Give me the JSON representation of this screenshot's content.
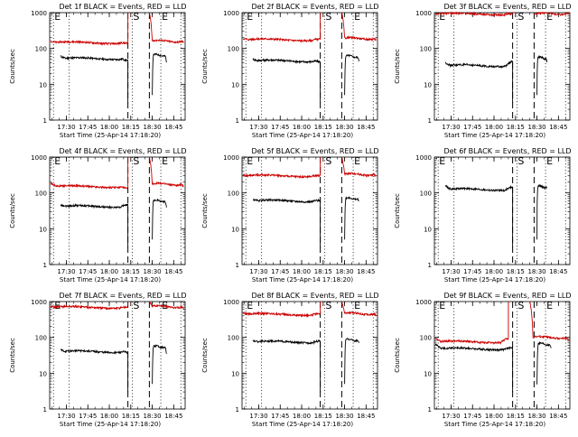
{
  "figure": {
    "ylabel": "Counts/sec",
    "xlabel": "Start Time (25-Apr-14 17:18:20)",
    "x_ticks": [
      "17:30",
      "17:45",
      "18:00",
      "18:15",
      "18:30",
      "18:45"
    ],
    "y_ticks": [
      "1",
      "10",
      "100",
      "1000"
    ],
    "marker_labels": {
      "E": "E",
      "S": "S"
    },
    "colors": {
      "events": "#000000",
      "lld": "#cc0000"
    }
  },
  "chart_data": [
    {
      "title": "Det 1f BLACK = Events, RED = LLD",
      "type": "line",
      "xlabel": "Start Time (25-Apr-14 17:18:20)",
      "ylabel": "Counts/sec",
      "y_scale": "log",
      "ylim": [
        1,
        1000
      ],
      "xlim": [
        "17:18:20",
        "18:53"
      ],
      "vertical_lines": [
        {
          "time": "17:21",
          "style": "dotted",
          "label": "E"
        },
        {
          "time": "17:32",
          "style": "dotted"
        },
        {
          "time": "18:13",
          "style": "dashed"
        },
        {
          "time": "18:16",
          "style": "dotted",
          "label": "S"
        },
        {
          "time": "18:28",
          "style": "dashed"
        },
        {
          "time": "18:36",
          "style": "dotted",
          "label": "E"
        },
        {
          "time": "18:50",
          "style": "dotted"
        }
      ],
      "series": [
        {
          "name": "Events",
          "color": "#000000",
          "segments": [
            {
              "start": "17:26",
              "end": "18:13",
              "start_value": 60,
              "level": 52,
              "end_value": 45,
              "drop_end": 3
            },
            {
              "start": "18:30",
              "end": "18:40",
              "start_value": 5,
              "level": 65,
              "end_value": 42,
              "drop_start": 5
            }
          ]
        },
        {
          "name": "LLD",
          "color": "#cc0000",
          "segments": [
            {
              "start": "17:19",
              "end": "18:13",
              "start_value": 160,
              "level": 145,
              "end_value": 140,
              "end_rise": 1000
            },
            {
              "start": "18:28",
              "end": "18:52",
              "start_value": 1000,
              "level": 160,
              "end_value": 150
            }
          ]
        }
      ]
    },
    {
      "title": "Det 2f BLACK = Events, RED = LLD",
      "type": "line",
      "xlabel": "Start Time (25-Apr-14 17:18:20)",
      "ylabel": "Counts/sec",
      "y_scale": "log",
      "ylim": [
        1,
        1000
      ],
      "xlim": [
        "17:18:20",
        "18:53"
      ],
      "vertical_lines": [
        {
          "time": "17:21",
          "style": "dotted",
          "label": "E"
        },
        {
          "time": "17:32",
          "style": "dotted"
        },
        {
          "time": "18:13",
          "style": "dashed"
        },
        {
          "time": "18:16",
          "style": "dotted",
          "label": "S"
        },
        {
          "time": "18:28",
          "style": "dashed"
        },
        {
          "time": "18:36",
          "style": "dotted",
          "label": "E"
        },
        {
          "time": "18:50",
          "style": "dotted"
        }
      ],
      "series": [
        {
          "name": "Events",
          "color": "#000000",
          "segments": [
            {
              "start": "17:26",
              "end": "18:13",
              "start_value": 50,
              "level": 45,
              "end_value": 42,
              "drop_end": 3
            },
            {
              "start": "18:30",
              "end": "18:40",
              "start_value": 5,
              "level": 60,
              "end_value": 45,
              "drop_start": 5
            }
          ]
        },
        {
          "name": "LLD",
          "color": "#cc0000",
          "segments": [
            {
              "start": "17:19",
              "end": "18:13",
              "start_value": 190,
              "level": 175,
              "end_value": 185,
              "end_rise": 1000
            },
            {
              "start": "18:28",
              "end": "18:52",
              "start_value": 1000,
              "level": 190,
              "end_value": 175
            }
          ]
        }
      ]
    },
    {
      "title": "Det 3f BLACK = Events, RED = LLD",
      "type": "line",
      "xlabel": "Start Time (25-Apr-14 17:18:20)",
      "ylabel": "Counts/sec",
      "y_scale": "log",
      "ylim": [
        1,
        1000
      ],
      "xlim": [
        "17:18:20",
        "18:53"
      ],
      "vertical_lines": [
        {
          "time": "17:21",
          "style": "dotted",
          "label": "E"
        },
        {
          "time": "17:32",
          "style": "dotted"
        },
        {
          "time": "18:13",
          "style": "dashed"
        },
        {
          "time": "18:16",
          "style": "dotted",
          "label": "S"
        },
        {
          "time": "18:28",
          "style": "dashed"
        },
        {
          "time": "18:36",
          "style": "dotted",
          "label": "E"
        },
        {
          "time": "18:50",
          "style": "dotted"
        }
      ],
      "series": [
        {
          "name": "Events",
          "color": "#000000",
          "segments": [
            {
              "start": "17:26",
              "end": "18:13",
              "start_value": 40,
              "level": 33,
              "end_value": 45,
              "drop_end": 3
            },
            {
              "start": "18:30",
              "end": "18:37",
              "start_value": 5,
              "level": 55,
              "end_value": 42,
              "drop_start": 5
            }
          ]
        },
        {
          "name": "LLD",
          "color": "#cc0000",
          "segments": [
            {
              "start": "17:19",
              "end": "18:13",
              "start_value": 950,
              "level": 920,
              "end_value": 940
            },
            {
              "start": "18:28",
              "end": "18:52",
              "start_value": 950,
              "level": 930,
              "end_value": 940
            }
          ]
        }
      ]
    },
    {
      "title": "Det 4f BLACK = Events, RED = LLD",
      "type": "line",
      "xlabel": "Start Time (25-Apr-14 17:18:20)",
      "ylabel": "Counts/sec",
      "y_scale": "log",
      "ylim": [
        1,
        1000
      ],
      "xlim": [
        "17:18:20",
        "18:53"
      ],
      "vertical_lines": [
        {
          "time": "17:21",
          "style": "dotted",
          "label": "E"
        },
        {
          "time": "17:32",
          "style": "dotted"
        },
        {
          "time": "18:13",
          "style": "dashed"
        },
        {
          "time": "18:16",
          "style": "dotted",
          "label": "S"
        },
        {
          "time": "18:28",
          "style": "dashed"
        },
        {
          "time": "18:36",
          "style": "dotted",
          "label": "E"
        },
        {
          "time": "18:50",
          "style": "dotted"
        }
      ],
      "series": [
        {
          "name": "Events",
          "color": "#000000",
          "segments": [
            {
              "start": "17:26",
              "end": "18:13",
              "start_value": 45,
              "level": 42,
              "end_value": 47,
              "drop_end": 3
            },
            {
              "start": "18:30",
              "end": "18:40",
              "start_value": 5,
              "level": 60,
              "end_value": 40,
              "drop_start": 5
            }
          ]
        },
        {
          "name": "LLD",
          "color": "#cc0000",
          "segments": [
            {
              "start": "17:19",
              "end": "18:13",
              "start_value": 190,
              "level": 150,
              "end_value": 130,
              "end_rise": 1000
            },
            {
              "start": "18:28",
              "end": "18:52",
              "start_value": 1000,
              "level": 175,
              "end_value": 155
            }
          ]
        }
      ]
    },
    {
      "title": "Det 5f BLACK = Events, RED = LLD",
      "type": "line",
      "xlabel": "Start Time (25-Apr-14 17:18:20)",
      "ylabel": "Counts/sec",
      "y_scale": "log",
      "ylim": [
        1,
        1000
      ],
      "xlim": [
        "17:18:20",
        "18:53"
      ],
      "vertical_lines": [
        {
          "time": "17:21",
          "style": "dotted",
          "label": "E"
        },
        {
          "time": "17:32",
          "style": "dotted"
        },
        {
          "time": "18:13",
          "style": "dashed"
        },
        {
          "time": "18:16",
          "style": "dotted",
          "label": "S"
        },
        {
          "time": "18:28",
          "style": "dashed"
        },
        {
          "time": "18:36",
          "style": "dotted",
          "label": "E"
        },
        {
          "time": "18:50",
          "style": "dotted"
        }
      ],
      "series": [
        {
          "name": "Events",
          "color": "#000000",
          "segments": [
            {
              "start": "17:26",
              "end": "18:13",
              "start_value": 65,
              "level": 60,
              "end_value": 62,
              "drop_end": 3
            },
            {
              "start": "18:30",
              "end": "18:40",
              "start_value": 5,
              "level": 70,
              "end_value": 60,
              "drop_start": 5
            }
          ]
        },
        {
          "name": "LLD",
          "color": "#cc0000",
          "segments": [
            {
              "start": "17:19",
              "end": "18:13",
              "start_value": 310,
              "level": 300,
              "end_value": 310,
              "end_rise": 1000
            },
            {
              "start": "18:28",
              "end": "18:52",
              "start_value": 1000,
              "level": 330,
              "end_value": 310
            }
          ]
        }
      ]
    },
    {
      "title": "Det 6f BLACK = Events, RED = LLD",
      "type": "line",
      "xlabel": "Start Time (25-Apr-14 17:18:20)",
      "ylabel": "Counts/sec",
      "y_scale": "log",
      "ylim": [
        1,
        1000
      ],
      "xlim": [
        "17:18:20",
        "18:53"
      ],
      "vertical_lines": [
        {
          "time": "17:21",
          "style": "dotted",
          "label": "E"
        },
        {
          "time": "17:32",
          "style": "dotted"
        },
        {
          "time": "18:13",
          "style": "dashed"
        },
        {
          "time": "18:16",
          "style": "dotted",
          "label": "S"
        },
        {
          "time": "18:28",
          "style": "dashed"
        },
        {
          "time": "18:36",
          "style": "dotted",
          "label": "E"
        },
        {
          "time": "18:50",
          "style": "dotted"
        }
      ],
      "series": [
        {
          "name": "Events",
          "color": "#000000",
          "segments": [
            {
              "start": "17:26",
              "end": "18:13",
              "start_value": 160,
              "level": 125,
              "end_value": 150,
              "drop_end": 3
            },
            {
              "start": "18:30",
              "end": "18:37",
              "start_value": 5,
              "level": 150,
              "end_value": 135,
              "drop_start": 5
            }
          ]
        }
      ]
    },
    {
      "title": "Det 7f BLACK = Events, RED = LLD",
      "type": "line",
      "xlabel": "Start Time (25-Apr-14 17:18:20)",
      "ylabel": "Counts/sec",
      "y_scale": "log",
      "ylim": [
        1,
        1000
      ],
      "xlim": [
        "17:18:20",
        "18:53"
      ],
      "vertical_lines": [
        {
          "time": "17:21",
          "style": "dotted",
          "label": "E"
        },
        {
          "time": "17:32",
          "style": "dotted"
        },
        {
          "time": "18:13",
          "style": "dashed"
        },
        {
          "time": "18:16",
          "style": "dotted",
          "label": "S"
        },
        {
          "time": "18:28",
          "style": "dashed"
        },
        {
          "time": "18:36",
          "style": "dotted",
          "label": "E"
        },
        {
          "time": "18:50",
          "style": "dotted"
        }
      ],
      "series": [
        {
          "name": "Events",
          "color": "#000000",
          "segments": [
            {
              "start": "17:26",
              "end": "18:13",
              "start_value": 45,
              "level": 40,
              "end_value": 38,
              "drop_end": 3
            },
            {
              "start": "18:30",
              "end": "18:40",
              "start_value": 5,
              "level": 55,
              "end_value": 35,
              "drop_start": 5
            }
          ]
        },
        {
          "name": "LLD",
          "color": "#cc0000",
          "segments": [
            {
              "start": "17:19",
              "end": "18:13",
              "start_value": 720,
              "level": 690,
              "end_value": 700,
              "end_rise": 1000
            },
            {
              "start": "18:28",
              "end": "18:52",
              "start_value": 1000,
              "level": 720,
              "end_value": 650
            }
          ]
        }
      ]
    },
    {
      "title": "Det 8f BLACK = Events, RED = LLD",
      "type": "line",
      "xlabel": "Start Time (25-Apr-14 17:18:20)",
      "ylabel": "Counts/sec",
      "y_scale": "log",
      "ylim": [
        1,
        1000
      ],
      "xlim": [
        "17:18:20",
        "18:53"
      ],
      "vertical_lines": [
        {
          "time": "17:21",
          "style": "dotted",
          "label": "E"
        },
        {
          "time": "17:32",
          "style": "dotted"
        },
        {
          "time": "18:13",
          "style": "dashed"
        },
        {
          "time": "18:16",
          "style": "dotted",
          "label": "S"
        },
        {
          "time": "18:28",
          "style": "dashed"
        },
        {
          "time": "18:36",
          "style": "dotted",
          "label": "E"
        },
        {
          "time": "18:50",
          "style": "dotted"
        }
      ],
      "series": [
        {
          "name": "Events",
          "color": "#000000",
          "segments": [
            {
              "start": "17:26",
              "end": "18:13",
              "start_value": 80,
              "level": 75,
              "end_value": 80,
              "drop_end": 3
            },
            {
              "start": "18:30",
              "end": "18:40",
              "start_value": 5,
              "level": 85,
              "end_value": 70,
              "drop_start": 5
            }
          ]
        },
        {
          "name": "LLD",
          "color": "#cc0000",
          "segments": [
            {
              "start": "17:19",
              "end": "18:13",
              "start_value": 480,
              "level": 440,
              "end_value": 450,
              "end_rise": 1000
            },
            {
              "start": "18:28",
              "end": "18:52",
              "start_value": 1000,
              "level": 460,
              "end_value": 420
            }
          ]
        }
      ]
    },
    {
      "title": "Det 9f BLACK = Events, RED = LLD",
      "type": "line",
      "xlabel": "Start Time (25-Apr-14 17:18:20)",
      "ylabel": "Counts/sec",
      "y_scale": "log",
      "ylim": [
        1,
        1000
      ],
      "xlim": [
        "17:18:20",
        "18:53"
      ],
      "vertical_lines": [
        {
          "time": "17:21",
          "style": "dotted",
          "label": "E"
        },
        {
          "time": "17:32",
          "style": "dotted"
        },
        {
          "time": "18:13",
          "style": "dashed"
        },
        {
          "time": "18:16",
          "style": "dotted",
          "label": "S"
        },
        {
          "time": "18:28",
          "style": "dashed"
        },
        {
          "time": "18:36",
          "style": "dotted",
          "label": "E"
        },
        {
          "time": "18:50",
          "style": "dotted"
        }
      ],
      "series": [
        {
          "name": "Events",
          "color": "#000000",
          "segments": [
            {
              "start": "17:19",
              "end": "18:13",
              "start_value": 65,
              "level": 48,
              "end_value": 52,
              "drop_end": 3
            },
            {
              "start": "18:30",
              "end": "18:40",
              "start_value": 5,
              "level": 65,
              "end_value": 50,
              "drop_start": 5
            }
          ]
        },
        {
          "name": "LLD",
          "color": "#cc0000",
          "segments": [
            {
              "start": "17:19",
              "end": "18:10",
              "start_value": 95,
              "level": 75,
              "end_value": 95,
              "end_rise": 1000
            },
            {
              "start": "18:25",
              "end": "18:52",
              "start_value": 1000,
              "level": 100,
              "end_value": 85
            }
          ]
        }
      ]
    }
  ]
}
